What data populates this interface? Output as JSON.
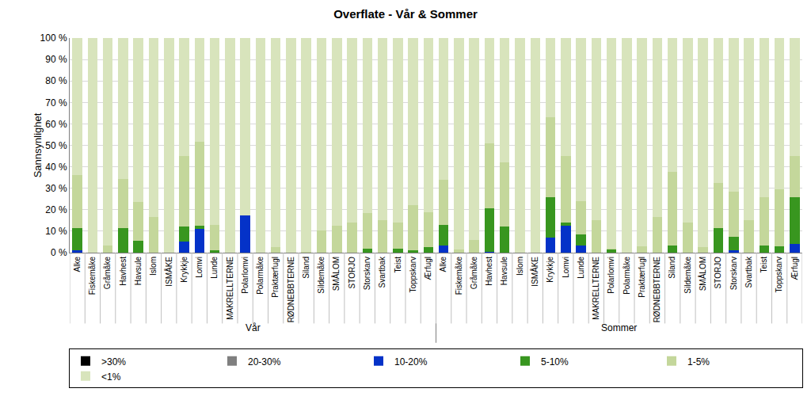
{
  "chart_data": {
    "type": "bar",
    "title": "Overflate - Vår & Sommer",
    "y_label": "Sannsynlighet",
    "groups": [
      "Vår",
      "Sommer"
    ],
    "categories": [
      "Alke",
      "Fiskemåke",
      "Gråmåke",
      "Havhest",
      "Havsule",
      "Islom",
      "ISMÅKE",
      "Krykkje",
      "Lomvi",
      "Lunde",
      "MAKRELLTERNE",
      "Polarlomvi",
      "Polarmåke",
      "Praktærfugl",
      "RØDNEBBTERNE",
      "Siland",
      "Sildemåke",
      "SMÅLOM",
      "STORJO",
      "Storskarv",
      "Svartbak",
      "Teist",
      "Toppskarv",
      "Ærfugl",
      "Alke",
      "Fiskemåke",
      "Gråmåke",
      "Havhest",
      "Havsule",
      "Islom",
      "ISMÅKE",
      "Krykkje",
      "Lomvi",
      "Lunde",
      "MAKRELLTERNE",
      "Polarlomvi",
      "Polarmåke",
      "Praktærfugl",
      "RØDNEBBTERNE",
      "Siland",
      "Sildemåke",
      "SMÅLOM",
      "STORJO",
      "Storskarv",
      "Svartbak",
      "Teist",
      "Toppskarv",
      "Ærfugl"
    ],
    "stacked": true,
    "grid": true,
    "legend": "bottom",
    "ylim": [
      0,
      100
    ],
    "yticks": [
      {
        "value": 0,
        "label": "0 %"
      },
      {
        "value": 10,
        "label": "10 %"
      },
      {
        "value": 20,
        "label": "20 %"
      },
      {
        "value": 30,
        "label": "30 %"
      },
      {
        "value": 40,
        "label": "40 %"
      },
      {
        "value": 50,
        "label": "50 %"
      },
      {
        "value": 60,
        "label": "60 %"
      },
      {
        "value": 70,
        "label": "70 %"
      },
      {
        "value": 80,
        "label": "80 %"
      },
      {
        "value": 90,
        "label": "90 %"
      },
      {
        "value": 100,
        "label": "100 %"
      }
    ],
    "series": [
      {
        "name": ">30%",
        "color": "#000000",
        "values": [
          0,
          0,
          0,
          0,
          0,
          0,
          0,
          0,
          0,
          0,
          0,
          0,
          0,
          0,
          0,
          0,
          0,
          0,
          0,
          0,
          0,
          0,
          0,
          0,
          0,
          0,
          0,
          0,
          0,
          0,
          0,
          0,
          0,
          0,
          0,
          0,
          0,
          0,
          0,
          0,
          0,
          0,
          0,
          0,
          0,
          0,
          0,
          0
        ]
      },
      {
        "name": "20-30%",
        "color": "#7f7f7f",
        "values": [
          0,
          0,
          0,
          0,
          0,
          0,
          0,
          0,
          0,
          0,
          0,
          0,
          0,
          0,
          0,
          0,
          0,
          0,
          0,
          0,
          0,
          0,
          0,
          0,
          0,
          0,
          0,
          0,
          0,
          0,
          0,
          0,
          0,
          0,
          0,
          0,
          0,
          0,
          0,
          0,
          0,
          0,
          0,
          0,
          0,
          0,
          0,
          0
        ]
      },
      {
        "name": "10-20%",
        "color": "#0432c8",
        "values": [
          1,
          0,
          0,
          0,
          0,
          0,
          0,
          5,
          11,
          0,
          0,
          17.5,
          0,
          0,
          0,
          0,
          0,
          0,
          0,
          0,
          0,
          0,
          0,
          0,
          3.5,
          0,
          0,
          0.5,
          0,
          0,
          0,
          7,
          12.5,
          3.5,
          0,
          0,
          0,
          0,
          0,
          0,
          0,
          0,
          0,
          1,
          0,
          0,
          0,
          4
        ]
      },
      {
        "name": "5-10%",
        "color": "#38961f",
        "values": [
          10.5,
          0,
          0,
          11.5,
          5.5,
          0,
          0,
          7,
          1.5,
          1,
          0,
          0,
          0,
          0,
          0,
          0,
          0,
          0,
          0,
          2,
          0,
          2,
          1,
          2.5,
          9.5,
          0,
          0,
          20,
          12,
          0,
          0,
          19,
          1.5,
          5,
          0,
          1.5,
          0,
          0,
          0,
          3.5,
          0,
          0,
          11.5,
          6.5,
          0,
          3.5,
          3,
          22
        ]
      },
      {
        "name": "1-5%",
        "color": "#c4d79b",
        "values": [
          24.5,
          0,
          3.5,
          23,
          18,
          16.5,
          0,
          33,
          39,
          12,
          0,
          0,
          0,
          2.5,
          0,
          0.5,
          10.5,
          12.5,
          14,
          16.5,
          15,
          12,
          21,
          16.5,
          21,
          1.5,
          6,
          30.5,
          30,
          0,
          0,
          37,
          31,
          15.5,
          15,
          0.5,
          0,
          3,
          16.5,
          34,
          14,
          2.5,
          21,
          21,
          15,
          22.5,
          26.5,
          19
        ]
      },
      {
        "name": "<1%",
        "color": "#d8e4bc",
        "values": [
          64,
          100,
          96.5,
          65.5,
          76.5,
          83.5,
          100,
          55,
          48.5,
          87,
          100,
          82.5,
          100,
          97.5,
          100,
          99.5,
          89.5,
          87.5,
          86,
          81.5,
          85,
          86,
          78,
          81,
          66,
          98.5,
          94,
          49,
          58,
          100,
          100,
          37,
          55,
          76,
          85,
          98,
          100,
          97,
          83.5,
          62.5,
          86,
          97.5,
          67.5,
          71.5,
          85,
          74,
          70.5,
          55
        ]
      }
    ]
  }
}
